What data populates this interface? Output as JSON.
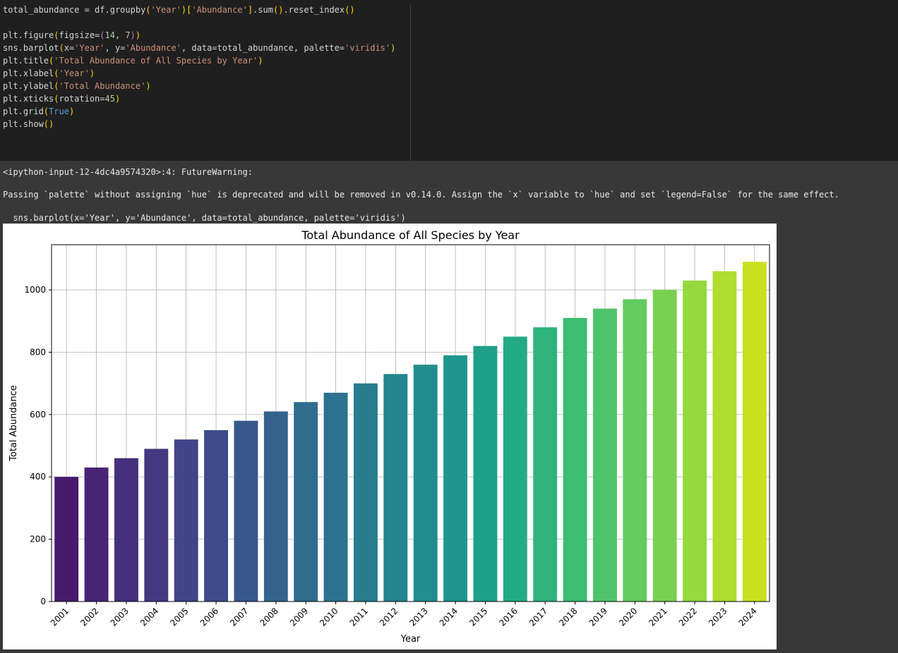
{
  "code": {
    "lines": [
      [
        {
          "t": "total_abundance = df.groupby",
          "c": "k-fn"
        },
        {
          "t": "(",
          "c": "k-p1"
        },
        {
          "t": "'Year'",
          "c": "k-str"
        },
        {
          "t": ")",
          "c": "k-p1"
        },
        {
          "t": "[",
          "c": "k-p1"
        },
        {
          "t": "'Abundance'",
          "c": "k-str"
        },
        {
          "t": "]",
          "c": "k-p1"
        },
        {
          "t": ".sum",
          "c": "k-fn"
        },
        {
          "t": "()",
          "c": "k-p1"
        },
        {
          "t": ".reset_index",
          "c": "k-fn"
        },
        {
          "t": "()",
          "c": "k-p1"
        }
      ],
      [],
      [
        {
          "t": "plt.figure",
          "c": "k-fn"
        },
        {
          "t": "(",
          "c": "k-p1"
        },
        {
          "t": "figsize=",
          "c": "k-fn"
        },
        {
          "t": "(",
          "c": "k-p2"
        },
        {
          "t": "14",
          "c": "k-num"
        },
        {
          "t": ", ",
          "c": "k-fn"
        },
        {
          "t": "7",
          "c": "k-num"
        },
        {
          "t": ")",
          "c": "k-p2"
        },
        {
          "t": ")",
          "c": "k-p1"
        }
      ],
      [
        {
          "t": "sns.barplot",
          "c": "k-fn"
        },
        {
          "t": "(",
          "c": "k-p1"
        },
        {
          "t": "x=",
          "c": "k-fn"
        },
        {
          "t": "'Year'",
          "c": "k-str"
        },
        {
          "t": ", y=",
          "c": "k-fn"
        },
        {
          "t": "'Abundance'",
          "c": "k-str"
        },
        {
          "t": ", data=total_abundance, palette=",
          "c": "k-fn"
        },
        {
          "t": "'viridis'",
          "c": "k-str"
        },
        {
          "t": ")",
          "c": "k-p1"
        }
      ],
      [
        {
          "t": "plt.title",
          "c": "k-fn"
        },
        {
          "t": "(",
          "c": "k-p1"
        },
        {
          "t": "'Total Abundance of All Species by Year'",
          "c": "k-str"
        },
        {
          "t": ")",
          "c": "k-p1"
        }
      ],
      [
        {
          "t": "plt.xlabel",
          "c": "k-fn"
        },
        {
          "t": "(",
          "c": "k-p1"
        },
        {
          "t": "'Year'",
          "c": "k-str"
        },
        {
          "t": ")",
          "c": "k-p1"
        }
      ],
      [
        {
          "t": "plt.ylabel",
          "c": "k-fn"
        },
        {
          "t": "(",
          "c": "k-p1"
        },
        {
          "t": "'Total Abundance'",
          "c": "k-str"
        },
        {
          "t": ")",
          "c": "k-p1"
        }
      ],
      [
        {
          "t": "plt.xticks",
          "c": "k-fn"
        },
        {
          "t": "(",
          "c": "k-p1"
        },
        {
          "t": "rotation=",
          "c": "k-fn"
        },
        {
          "t": "45",
          "c": "k-num"
        },
        {
          "t": ")",
          "c": "k-p1"
        }
      ],
      [
        {
          "t": "plt.grid",
          "c": "k-fn"
        },
        {
          "t": "(",
          "c": "k-p1"
        },
        {
          "t": "True",
          "c": "k-kw"
        },
        {
          "t": ")",
          "c": "k-p1"
        }
      ],
      [
        {
          "t": "plt.show",
          "c": "k-fn"
        },
        {
          "t": "()",
          "c": "k-p1"
        }
      ]
    ]
  },
  "output": {
    "warning_header": "<ipython-input-12-4dc4a9574320>:4: FutureWarning:",
    "warning_message": "Passing `palette` without assigning `hue` is deprecated and will be removed in v0.14.0. Assign the `x` variable to `hue` and set `legend=False` for the same effect.",
    "warning_source": "  sns.barplot(x='Year', y='Abundance', data=total_abundance, palette='viridis')"
  },
  "chart_data": {
    "type": "bar",
    "title": "Total Abundance of All Species by Year",
    "xlabel": "Year",
    "ylabel": "Total Abundance",
    "categories": [
      "2001",
      "2002",
      "2003",
      "2004",
      "2005",
      "2006",
      "2007",
      "2008",
      "2009",
      "2010",
      "2011",
      "2012",
      "2013",
      "2014",
      "2015",
      "2016",
      "2017",
      "2018",
      "2019",
      "2020",
      "2021",
      "2022",
      "2023",
      "2024"
    ],
    "values": [
      400,
      430,
      460,
      490,
      520,
      550,
      580,
      610,
      640,
      670,
      700,
      730,
      760,
      790,
      820,
      850,
      880,
      910,
      940,
      970,
      1000,
      1030,
      1060,
      1090
    ],
    "ylim": [
      0,
      1145
    ],
    "yticks": [
      0,
      200,
      400,
      600,
      800,
      1000
    ],
    "grid": true,
    "xtick_rotation": 45,
    "palette": "viridis",
    "colors": [
      "#481a6c",
      "#482475",
      "#472f7d",
      "#453882",
      "#414487",
      "#3d4d8a",
      "#38588c",
      "#33638d",
      "#2f6c8e",
      "#2c728e",
      "#287c8e",
      "#25848e",
      "#228d8d",
      "#1f968b",
      "#1fa088",
      "#24aa83",
      "#2fb47c",
      "#3dbc74",
      "#50c46a",
      "#63cb5f",
      "#7ad151",
      "#95d840",
      "#b0dd2f",
      "#c8e020"
    ]
  }
}
